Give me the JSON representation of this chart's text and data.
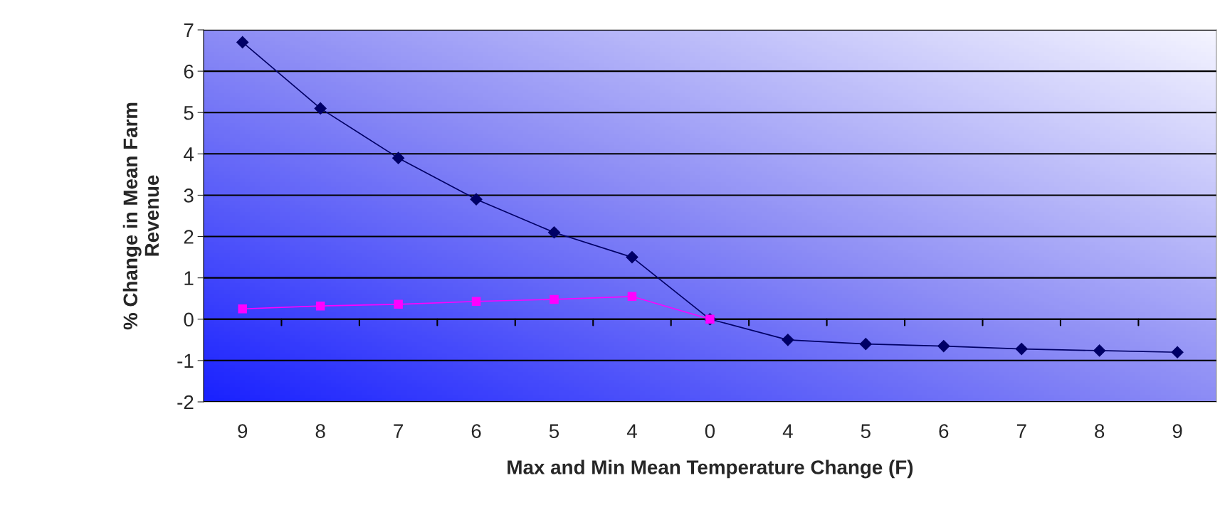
{
  "chart_data": {
    "type": "line",
    "xlabel": "Max and Min Mean Temperature Change (F)",
    "ylabel": "% Change in Mean Farm\nRevenue",
    "categories": [
      "9",
      "8",
      "7",
      "6",
      "5",
      "4",
      "0",
      "4",
      "5",
      "6",
      "7",
      "8",
      "9"
    ],
    "series": [
      {
        "color": "#000066",
        "marker": "diamond",
        "values": [
          6.7,
          5.1,
          3.9,
          2.9,
          2.1,
          1.5,
          0,
          -0.5,
          -0.6,
          -0.65,
          -0.72,
          -0.76,
          -0.8
        ]
      },
      {
        "color": "#ff00ff",
        "marker": "square",
        "values": [
          0.25,
          0.32,
          0.36,
          0.43,
          0.48,
          0.55,
          0,
          null,
          null,
          null,
          null,
          null,
          null
        ]
      }
    ],
    "ylim": [
      -2,
      7
    ],
    "yticks": [
      -2,
      -1,
      0,
      1,
      2,
      3,
      4,
      5,
      6,
      7
    ],
    "grid": "y",
    "legend": false
  }
}
